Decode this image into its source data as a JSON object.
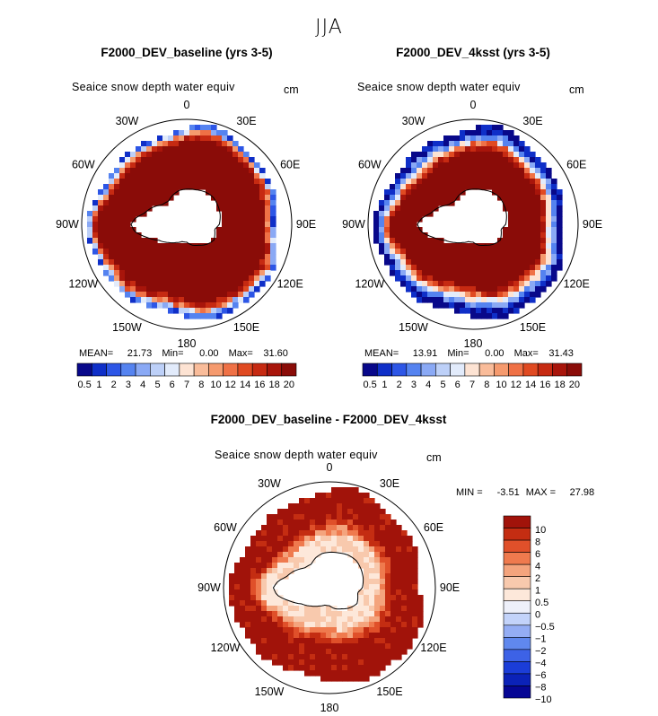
{
  "figure": {
    "season": "JJA"
  },
  "panels": [
    {
      "title": "F2000_DEV_baseline (yrs 3-5)",
      "variable": "Seaice snow depth water equiv",
      "units": "cm",
      "stats": {
        "mean_label": "MEAN=",
        "mean": "21.73",
        "min_label": "Min=",
        "min": "0.00",
        "max_label": "Max=",
        "max": "31.60"
      }
    },
    {
      "title": "F2000_DEV_4ksst (yrs 3-5)",
      "variable": "Seaice snow depth water equiv",
      "units": "cm",
      "stats": {
        "mean_label": "MEAN=",
        "mean": "13.91",
        "min_label": "Min=",
        "min": "0.00",
        "max_label": "Max=",
        "max": "31.43"
      }
    },
    {
      "title": "F2000_DEV_baseline - F2000_DEV_4ksst",
      "variable": "Seaice snow depth water equiv",
      "units": "cm",
      "stats": {
        "min_label": "MIN =",
        "min": "-3.51",
        "max_label": "MAX =",
        "max": "27.98"
      }
    }
  ],
  "longitude_labels": [
    "0",
    "30E",
    "60E",
    "90E",
    "120E",
    "150E",
    "180",
    "150W",
    "120W",
    "90W",
    "60W",
    "30W"
  ],
  "colors": {
    "abs_scale": [
      "#08088a",
      "#0f2fc8",
      "#2d56e6",
      "#5583f0",
      "#8aa9f5",
      "#bdd0f8",
      "#e2ebfb",
      "#fde3d3",
      "#f9bc9a",
      "#f59a6e",
      "#ef7146",
      "#e04a22",
      "#c62a12",
      "#a8150b",
      "#8a0c08"
    ],
    "diff_scale": [
      "#060694",
      "#0b22b8",
      "#1b3dd8",
      "#3d62e6",
      "#6088ee",
      "#94adf4",
      "#c3d3fa",
      "#eef0fa",
      "#fde8da",
      "#f8c9ad",
      "#f4a47d",
      "#ef7a4e",
      "#e0502a",
      "#c42d12",
      "#a1130a"
    ]
  },
  "chart_data": [
    {
      "type": "heatmap",
      "title": "F2000_DEV_baseline (yrs 3-5)",
      "projection": "south-polar-stereographic",
      "colorbar_labels": [
        "0.5",
        "1",
        "2",
        "3",
        "4",
        "5",
        "6",
        "7",
        "8",
        "10",
        "12",
        "14",
        "16",
        "18",
        "20"
      ],
      "field_summary": {
        "mean": 21.73,
        "min": 0.0,
        "max": 31.6
      },
      "ice_ring": {
        "inner_fraction": 0.55,
        "outer_fraction": 0.97,
        "dominant_level": "20"
      }
    },
    {
      "type": "heatmap",
      "title": "F2000_DEV_4ksst (yrs 3-5)",
      "projection": "south-polar-stereographic",
      "colorbar_labels": [
        "0.5",
        "1",
        "2",
        "3",
        "4",
        "5",
        "6",
        "7",
        "8",
        "10",
        "12",
        "14",
        "16",
        "18",
        "20"
      ],
      "field_summary": {
        "mean": 13.91,
        "min": 0.0,
        "max": 31.43
      },
      "ice_ring": {
        "inner_fraction": 0.55,
        "outer_fraction": 0.95,
        "dominant_level": "20",
        "edge_level": "0.5"
      }
    },
    {
      "type": "heatmap",
      "title": "F2000_DEV_baseline - F2000_DEV_4ksst",
      "projection": "south-polar-stereographic",
      "colorbar_labels": [
        "10",
        "8",
        "6",
        "4",
        "2",
        "1",
        "0.5",
        "0",
        "-0.5",
        "-1",
        "-2",
        "-4",
        "-6",
        "-8",
        "-10"
      ],
      "field_summary": {
        "min": -3.51,
        "max": 27.98
      },
      "ice_ring": {
        "inner_fraction": 0.55,
        "outer_fraction": 0.97,
        "dominant_level": "10",
        "inner_level": "0.5"
      }
    }
  ]
}
